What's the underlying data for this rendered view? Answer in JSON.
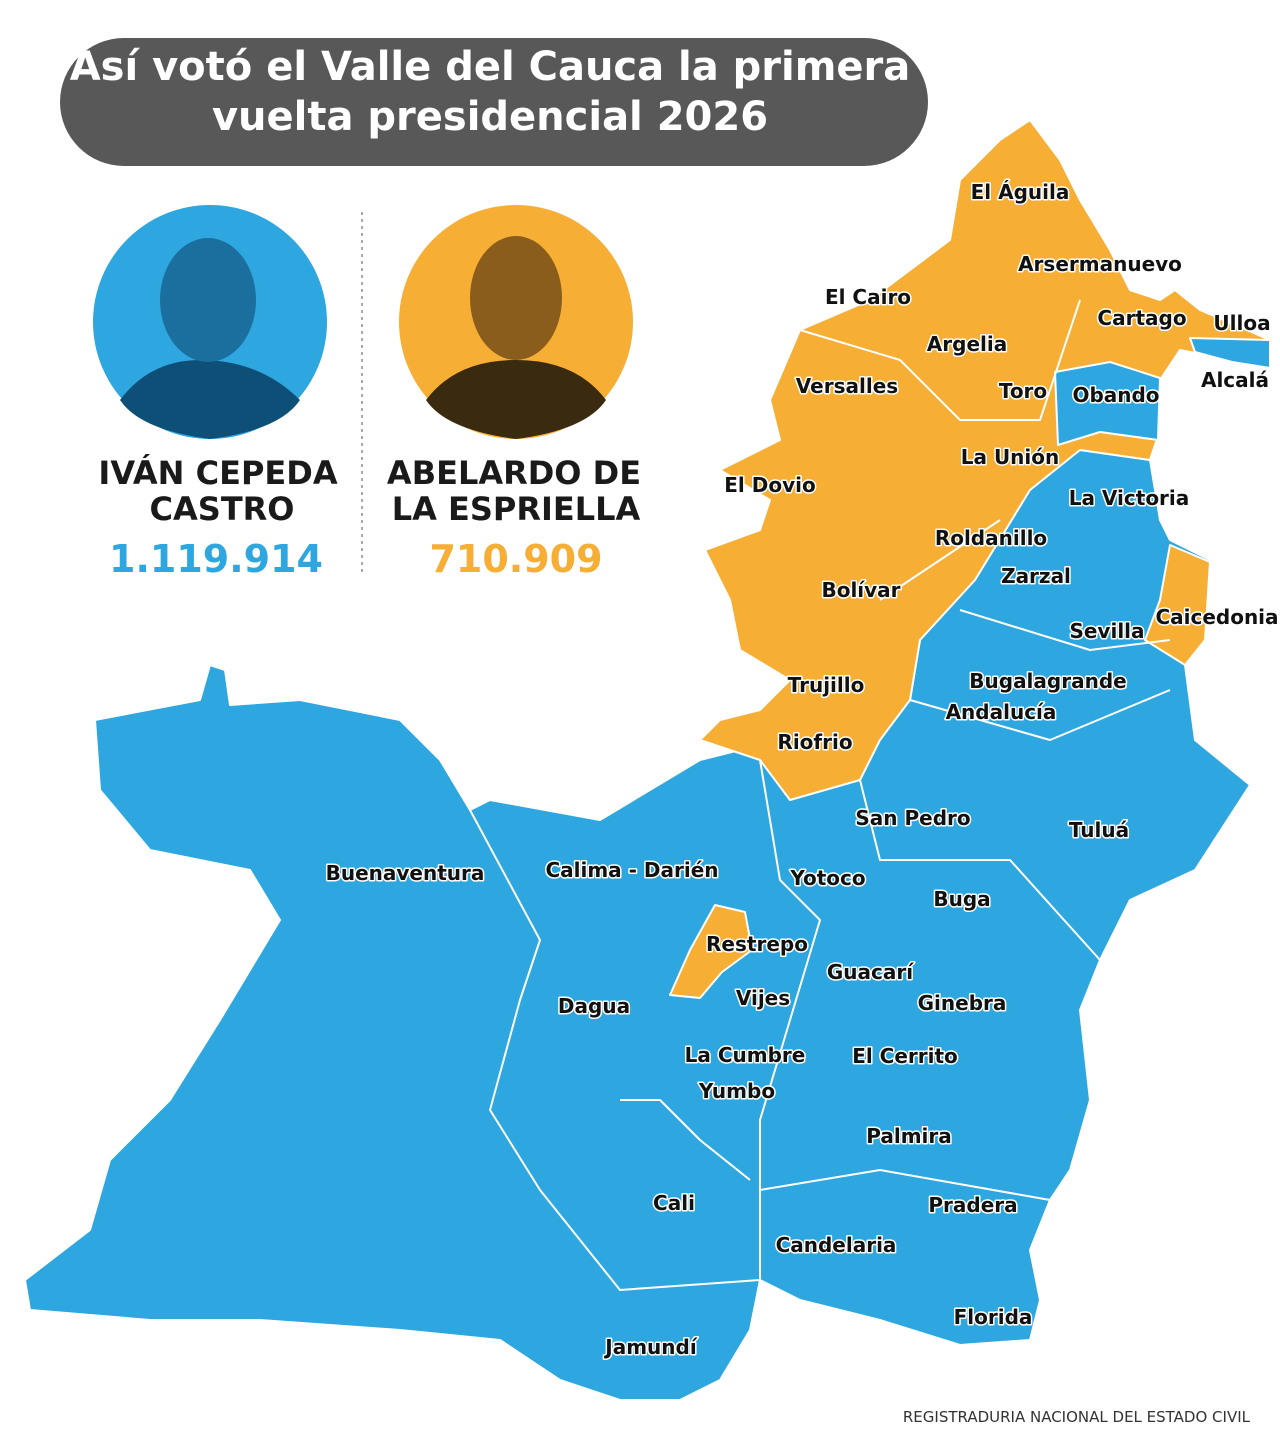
{
  "header": {
    "title_lines": [
      "Así votó el Valle del Cauca la primera",
      "vuelta presidencial 2026"
    ]
  },
  "candidates": [
    {
      "name_lines": [
        "IVÁN CEPEDA",
        "CASTRO"
      ],
      "votes": "1.119.914"
    },
    {
      "name_lines": [
        "ABELARDO DE",
        "LA ESPRIELLA"
      ],
      "votes": "710.909"
    }
  ],
  "municipalities": [
    "El Águila",
    "Arsermanuevo",
    "El Cairo",
    "Cartago",
    "Ulloa",
    "Argelia",
    "Versalles",
    "Toro",
    "Obando",
    "Alcalá",
    "La Unión",
    "El Dovio",
    "La Victoria",
    "Roldanillo",
    "Zarzal",
    "Bolívar",
    "Caicedonia",
    "Sevilla",
    "Bugalagrande",
    "Trujillo",
    "Andalucía",
    "Riofrio",
    "San Pedro",
    "Tuluá",
    "Buenaventura",
    "Calima - Darién",
    "Yotoco",
    "Buga",
    "Restrepo",
    "Guacarí",
    "Vijes",
    "Ginebra",
    "Dagua",
    "La Cumbre",
    "El Cerrito",
    "Yumbo",
    "Palmira",
    "Cali",
    "Pradera",
    "Candelaria",
    "Florida",
    "Jamundí"
  ],
  "source": "REGISTRADURIA NACIONAL DEL ESTADO CIVIL"
}
